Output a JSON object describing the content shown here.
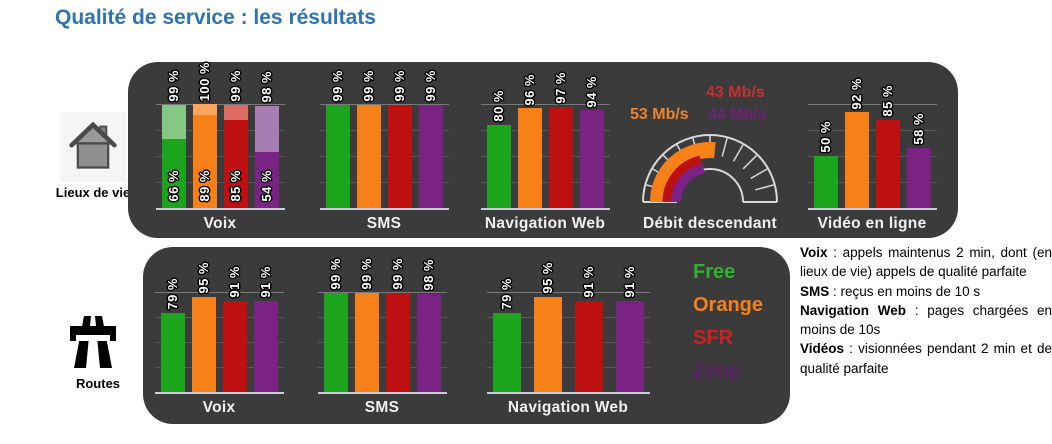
{
  "page_title": "Qualité de service : les résultats",
  "colors": {
    "title_blue": "#2E74B5",
    "panel_background": "#3B3B3B",
    "axis_line": "#C9CFDA",
    "gauge_outline": "#D8D8D8"
  },
  "operators": [
    {
      "name": "Free",
      "bar_color": "#1CA41C",
      "bar_color_light": "#84C884",
      "legend_color": "#2FB32F"
    },
    {
      "name": "Orange",
      "bar_color": "#F88018",
      "bar_color_light": "#FBA55E",
      "legend_color": "#F88018"
    },
    {
      "name": "SFR",
      "bar_color": "#BE1010",
      "bar_color_light": "#DE6A64",
      "legend_color": "#CE2020"
    },
    {
      "name": "Zeop",
      "bar_color": "#7B2384",
      "bar_color_light": "#A77EB3",
      "legend_color": "#5E2066"
    }
  ],
  "groups": [
    {
      "label": "Lieux de vie",
      "icon": "house-icon"
    },
    {
      "label": "Routes",
      "icon": "motorway-icon"
    }
  ],
  "chart_data": [
    {
      "id": "voix-lieux",
      "group": "Lieux de vie",
      "type": "bar",
      "variant": "stacked",
      "title": "Voix",
      "unit": "%",
      "ylim": [
        0,
        100
      ],
      "categories": [
        "Free",
        "Orange",
        "SFR",
        "Zeop"
      ],
      "series": [
        {
          "name": "appels maintenus 2 min",
          "values": [
            99,
            100,
            99,
            98
          ]
        },
        {
          "name": "dont appels de qualité parfaite",
          "values": [
            66,
            89,
            85,
            54
          ]
        }
      ]
    },
    {
      "id": "sms-lieux",
      "group": "Lieux de vie",
      "type": "bar",
      "title": "SMS",
      "unit": "%",
      "ylim": [
        0,
        100
      ],
      "categories": [
        "Free",
        "Orange",
        "SFR",
        "Zeop"
      ],
      "values": [
        99,
        99,
        99,
        99
      ]
    },
    {
      "id": "web-lieux",
      "group": "Lieux de vie",
      "type": "bar",
      "title": "Navigation Web",
      "unit": "%",
      "ylim": [
        0,
        100
      ],
      "categories": [
        "Free",
        "Orange",
        "SFR",
        "Zeop"
      ],
      "values": [
        80,
        96,
        97,
        94
      ]
    },
    {
      "id": "debit-lieux",
      "group": "Lieux de vie",
      "type": "gauge",
      "title": "Débit descendant",
      "unit": "Mb/s",
      "range": [
        0,
        100
      ],
      "readings": [
        {
          "operator": "SFR",
          "value": 43,
          "label": "43 Mb/s",
          "color": "#C53131",
          "arc_color": "#BE1010"
        },
        {
          "operator": "Orange",
          "value": 53,
          "label": "53 Mb/s",
          "color": "#EE8330",
          "arc_color": "#F88018"
        },
        {
          "operator": "Zeop",
          "value": 44,
          "label": "44 Mb/s",
          "color": "#6D2373",
          "arc_color": "#7B2384"
        }
      ]
    },
    {
      "id": "video-lieux",
      "group": "Lieux de vie",
      "type": "bar",
      "title": "Vidéo en ligne",
      "unit": "%",
      "ylim": [
        0,
        100
      ],
      "categories": [
        "Free",
        "Orange",
        "SFR",
        "Zeop"
      ],
      "values": [
        50,
        92,
        85,
        58
      ]
    },
    {
      "id": "voix-routes",
      "group": "Routes",
      "type": "bar",
      "title": "Voix",
      "unit": "%",
      "ylim": [
        0,
        100
      ],
      "categories": [
        "Free",
        "Orange",
        "SFR",
        "Zeop"
      ],
      "values": [
        79,
        95,
        91,
        91
      ]
    },
    {
      "id": "sms-routes",
      "group": "Routes",
      "type": "bar",
      "title": "SMS",
      "unit": "%",
      "ylim": [
        0,
        100
      ],
      "categories": [
        "Free",
        "Orange",
        "SFR",
        "Zeop"
      ],
      "values": [
        99,
        99,
        99,
        98
      ]
    },
    {
      "id": "web-routes",
      "group": "Routes",
      "type": "bar",
      "title": "Navigation Web",
      "unit": "%",
      "ylim": [
        0,
        100
      ],
      "categories": [
        "Free",
        "Orange",
        "SFR",
        "Zeop"
      ],
      "values": [
        79,
        95,
        91,
        91
      ]
    }
  ],
  "notes": [
    {
      "term": "Voix",
      "definition": " : appels maintenus 2 min, dont (en lieux de vie) appels de qualité parfaite"
    },
    {
      "term": "SMS",
      "definition": " : reçus en moins de 10 s"
    },
    {
      "term": "Navigation Web",
      "definition": " : pages chargées en moins de 10s"
    },
    {
      "term": "Vidéos",
      "definition": " : visionnées pendant 2 min et de qualité parfaite"
    }
  ]
}
